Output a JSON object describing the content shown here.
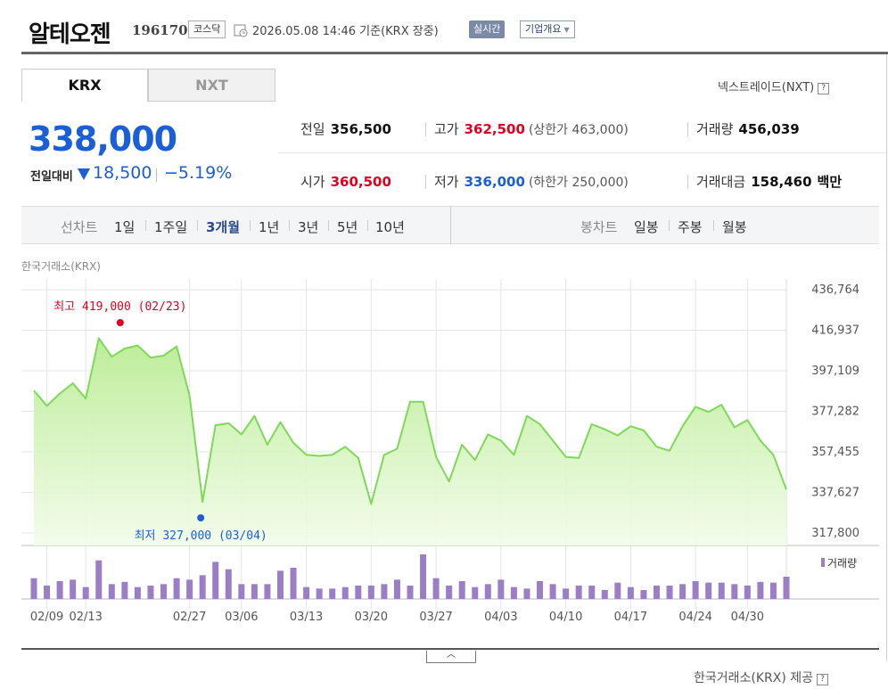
{
  "header": {
    "company": "알테오젠",
    "code": "196170",
    "market": "코스닥",
    "datetime": "2026.05.08 14:46  기준(KRX 장중)",
    "realtime": "실시간",
    "overview": "기업개요"
  },
  "tabs": [
    {
      "label": "KRX"
    },
    {
      "label": "NXT"
    }
  ],
  "nxt_link": "넥스트레이드(NXT)",
  "price": {
    "current": "338,000",
    "change_label": "전일대비",
    "change": "18,500",
    "change_pct": "−5.19%"
  },
  "stats": {
    "prev_label": "전일",
    "prev": "356,500",
    "high_label": "고가",
    "high": "362,500",
    "upper_limit": "(상한가 463,000)",
    "volume_label": "거래량",
    "volume": "456,039",
    "open_label": "시가",
    "open": "360,500",
    "low_label": "저가",
    "low": "336,000",
    "lower_limit": "(하한가 250,000)",
    "amount_label": "거래대금",
    "amount": "158,460",
    "amount_unit": "백만"
  },
  "periods": {
    "label": "선차트",
    "items": [
      "1일",
      "1주일",
      "3개월",
      "1년",
      "3년",
      "5년",
      "10년"
    ],
    "active": "3개월",
    "candle_label": "봉차트",
    "candle_items": [
      "일봉",
      "주봉",
      "월봉"
    ]
  },
  "source_top": "한국거래소(KRX)",
  "source_bottom": "한국거래소(KRX) 제공",
  "colors": {
    "line": "#7ed957",
    "fill_top": "#c8f0a8",
    "volume": "#9b7fc6",
    "high": "#e0001f",
    "low": "#1a5fd6"
  },
  "chart_data": {
    "type": "area",
    "y_ticks": [
      "436,764",
      "416,937",
      "397,109",
      "377,282",
      "357,455",
      "337,627",
      "317,800"
    ],
    "ylim": [
      317800,
      436764
    ],
    "x_ticks": [
      "02/09",
      "02/13",
      "02/27",
      "03/06",
      "03/13",
      "03/20",
      "03/27",
      "04/03",
      "04/10",
      "04/17",
      "04/24",
      "04/30"
    ],
    "x_tick_index": [
      1,
      4,
      12,
      16,
      21,
      26,
      31,
      36,
      41,
      46,
      51,
      55
    ],
    "max_label": "최고 419,000 (02/23)",
    "max_index": 7,
    "min_label": "최저 327,000 (03/04)",
    "min_index": 13,
    "volume_legend": "거래량",
    "series": [
      {
        "values": [
          387500,
          380000,
          386000,
          391000,
          383500,
          413000,
          404000,
          408000,
          409500,
          403500,
          404500,
          409000,
          385000,
          333000,
          370500,
          371500,
          366000,
          375000,
          361000,
          372000,
          362000,
          356000,
          355500,
          356000,
          360000,
          354500,
          332000,
          356000,
          359000,
          382000,
          382000,
          355000,
          343000,
          361000,
          353500,
          366000,
          363000,
          356000,
          375000,
          371000,
          363000,
          355000,
          354500,
          371000,
          368500,
          365500,
          370000,
          368000,
          360000,
          358000,
          370000,
          379500,
          377000,
          380500,
          369500,
          373000,
          363000,
          356000,
          339000
        ]
      }
    ],
    "volume": [
      28,
      18,
      24,
      26,
      16,
      52,
      20,
      23,
      16,
      18,
      20,
      28,
      26,
      32,
      50,
      40,
      20,
      20,
      20,
      38,
      42,
      16,
      14,
      14,
      16,
      18,
      18,
      20,
      26,
      18,
      60,
      28,
      18,
      24,
      16,
      20,
      26,
      16,
      14,
      24,
      20,
      14,
      18,
      18,
      12,
      22,
      16,
      12,
      18,
      18,
      20,
      24,
      22,
      22,
      20,
      18,
      23,
      22,
      30
    ]
  }
}
